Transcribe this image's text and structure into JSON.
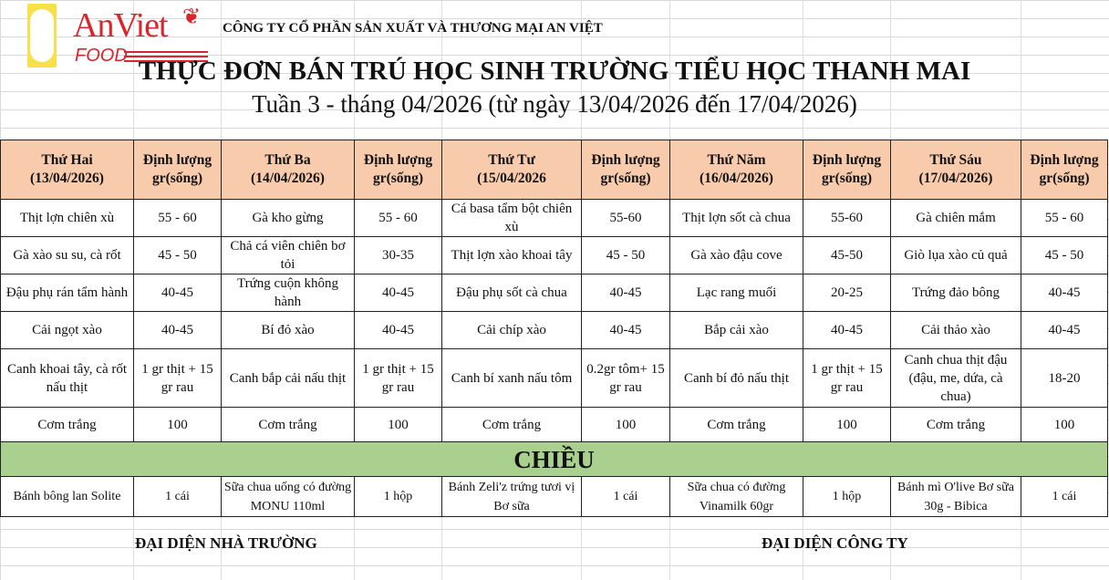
{
  "header": {
    "logo": {
      "brand": "AnViet",
      "sub": "FOOD",
      "colors": {
        "red": "#d8262e",
        "yellow": "#f7e04a"
      }
    },
    "company": "CÔNG TY CỔ PHẦN SẢN XUẤT VÀ THƯƠNG MẠI AN VIỆT",
    "title": "THỰC ĐƠN BÁN TRÚ HỌC SINH TRƯỜNG TIỂU HỌC THANH MAI",
    "subtitle": "Tuần 3 - tháng 04/2026 (từ ngày 13/04/2026 đến 17/04/2026)"
  },
  "table": {
    "header_color": "#f8cbad",
    "section_color": "#a9d08e",
    "days": [
      {
        "day": "Thứ Hai",
        "date": "(13/04/2026)",
        "qty_label1": "Định lượng",
        "qty_label2": "gr(sống)"
      },
      {
        "day": "Thứ Ba",
        "date": "(14/04/2026)",
        "qty_label1": "Định lượng",
        "qty_label2": "gr(sống)"
      },
      {
        "day": "Thứ Tư",
        "date": "(15/04/2026",
        "qty_label1": "Định lượng",
        "qty_label2": "gr(sống)"
      },
      {
        "day": "Thứ Năm",
        "date": "(16/04/2026)",
        "qty_label1": "Định lượng",
        "qty_label2": "gr(sống)"
      },
      {
        "day": "Thứ Sáu",
        "date": "(17/04/2026)",
        "qty_label1": "Định lượng",
        "qty_label2": "gr(sống)"
      }
    ],
    "rows": [
      [
        [
          "Thịt lợn chiên xù",
          "55 - 60"
        ],
        [
          "Gà kho gừng",
          "55 - 60"
        ],
        [
          "Cá basa tẩm bột chiên xù",
          "55-60"
        ],
        [
          "Thịt lợn sốt cà chua",
          "55-60"
        ],
        [
          "Gà chiên mắm",
          "55 - 60"
        ]
      ],
      [
        [
          "Gà xào su su, cà rốt",
          "45 - 50"
        ],
        [
          "Chả cá viên chiên bơ tỏi",
          "30-35"
        ],
        [
          "Thịt lợn xào khoai tây",
          "45 - 50"
        ],
        [
          "Gà xào đậu cove",
          "45-50"
        ],
        [
          "Giò lụa xào củ quả",
          "45 - 50"
        ]
      ],
      [
        [
          "Đậu phụ rán tẩm hành",
          "40-45"
        ],
        [
          "Trứng  cuộn không hành",
          "40-45"
        ],
        [
          "Đậu phụ sốt cà chua",
          "40-45"
        ],
        [
          "Lạc rang muối",
          "20-25"
        ],
        [
          "Trứng đảo bông",
          "40-45"
        ]
      ],
      [
        [
          "Cải ngọt xào",
          "40-45"
        ],
        [
          "Bí đỏ xào",
          "40-45"
        ],
        [
          "Cải chíp xào",
          "40-45"
        ],
        [
          "Bắp cải xào",
          "40-45"
        ],
        [
          "Cải thảo xào",
          "40-45"
        ]
      ],
      [
        [
          "Canh khoai tây, cà rốt nấu thịt",
          "1 gr thịt + 15 gr rau"
        ],
        [
          "Canh bắp cải nấu thịt",
          "1 gr thịt + 15 gr rau"
        ],
        [
          "Canh bí xanh nấu tôm",
          "0.2gr tôm+ 15 gr rau"
        ],
        [
          "Canh bí đỏ nấu thịt",
          "1 gr thịt + 15 gr rau"
        ],
        [
          "Canh chua thịt đậu (đậu, me, dứa, cà chua)",
          "18-20"
        ]
      ],
      [
        [
          "Cơm trắng",
          "100"
        ],
        [
          "Cơm trắng",
          "100"
        ],
        [
          "Cơm trắng",
          "100"
        ],
        [
          "Cơm trắng",
          "100"
        ],
        [
          "Cơm trắng",
          "100"
        ]
      ]
    ],
    "section": "CHIỀU",
    "snacks": [
      [
        "Bánh bông lan Solite",
        "1 cái"
      ],
      [
        "Sữa chua uống có đường MONU 110ml",
        "1 hộp"
      ],
      [
        "Bánh Zeli'z trứng tươi vị Bơ sữa",
        "1 cái"
      ],
      [
        "Sữa chua có đường Vinamilk 60gr",
        "1 hộp"
      ],
      [
        "Bánh mì O'live Bơ sữa 30g - Bibica",
        "1 cái"
      ]
    ]
  },
  "signatures": {
    "school": "ĐẠI DIỆN NHÀ TRƯỜNG",
    "company": "ĐẠI DIỆN CÔNG TY"
  }
}
